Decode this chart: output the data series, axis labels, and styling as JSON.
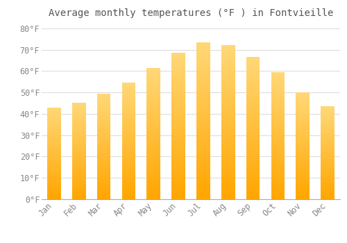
{
  "title": "Average monthly temperatures (°F ) in Fontvieille",
  "months": [
    "Jan",
    "Feb",
    "Mar",
    "Apr",
    "May",
    "Jun",
    "Jul",
    "Aug",
    "Sep",
    "Oct",
    "Nov",
    "Dec"
  ],
  "values": [
    43.0,
    45.0,
    49.5,
    54.5,
    61.5,
    68.5,
    73.5,
    72.0,
    66.5,
    59.5,
    50.0,
    43.5
  ],
  "bar_color_top": "#FFD060",
  "bar_color_bottom": "#FFA500",
  "background_color": "#FFFFFF",
  "grid_color": "#DDDDDD",
  "ylim": [
    0,
    83
  ],
  "yticks": [
    0,
    10,
    20,
    30,
    40,
    50,
    60,
    70,
    80
  ],
  "title_fontsize": 10,
  "tick_fontsize": 8.5,
  "tick_color": "#888888",
  "title_color": "#555555"
}
